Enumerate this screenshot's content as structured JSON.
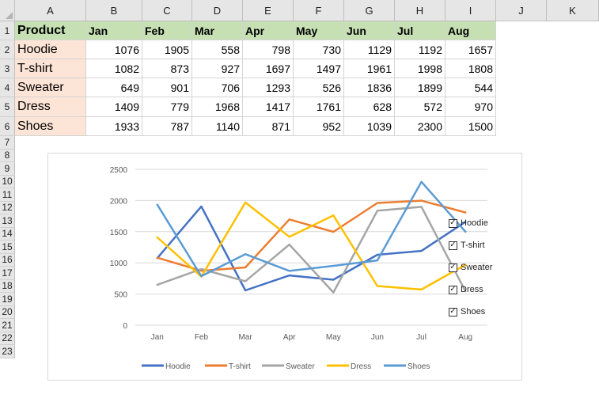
{
  "columns": [
    "A",
    "B",
    "C",
    "D",
    "E",
    "F",
    "G",
    "H",
    "I",
    "J",
    "K"
  ],
  "rows": [
    "1",
    "2",
    "3",
    "4",
    "5",
    "6",
    "7",
    "8",
    "9",
    "10",
    "11",
    "12",
    "13",
    "14",
    "15",
    "16",
    "17",
    "18",
    "19",
    "20",
    "21",
    "22",
    "23"
  ],
  "table": {
    "header": [
      "Product",
      "Jan",
      "Feb",
      "Mar",
      "Apr",
      "May",
      "Jun",
      "Jul",
      "Aug"
    ],
    "data": [
      [
        "Hoodie",
        "1076",
        "1905",
        "558",
        "798",
        "730",
        "1129",
        "1192",
        "1657"
      ],
      [
        "T-shirt",
        "1082",
        "873",
        "927",
        "1697",
        "1497",
        "1961",
        "1998",
        "1808"
      ],
      [
        "Sweater",
        "649",
        "901",
        "706",
        "1293",
        "526",
        "1836",
        "1899",
        "544"
      ],
      [
        "Dress",
        "1409",
        "779",
        "1968",
        "1417",
        "1761",
        "628",
        "572",
        "970"
      ],
      [
        "Shoes",
        "1933",
        "787",
        "1140",
        "871",
        "952",
        "1039",
        "2300",
        "1500"
      ]
    ]
  },
  "chart_data": {
    "type": "line",
    "categories": [
      "Jan",
      "Feb",
      "Mar",
      "Apr",
      "May",
      "Jun",
      "Jul",
      "Aug"
    ],
    "ylim": [
      0,
      2500
    ],
    "yticks": [
      "0",
      "500",
      "1000",
      "1500",
      "2000",
      "2500"
    ],
    "grid": true,
    "legend": "bottom",
    "series": [
      {
        "name": "Hoodie",
        "color": "#4472c4",
        "values": [
          1076,
          1905,
          558,
          798,
          730,
          1129,
          1192,
          1657
        ]
      },
      {
        "name": "T-shirt",
        "color": "#ed7d31",
        "values": [
          1082,
          873,
          927,
          1697,
          1497,
          1961,
          1998,
          1808
        ]
      },
      {
        "name": "Sweater",
        "color": "#a5a5a5",
        "values": [
          649,
          901,
          706,
          1293,
          526,
          1836,
          1899,
          544
        ]
      },
      {
        "name": "Dress",
        "color": "#ffc000",
        "values": [
          1409,
          779,
          1968,
          1417,
          1761,
          628,
          572,
          970
        ]
      },
      {
        "name": "Shoes",
        "color": "#5b9bd5",
        "values": [
          1933,
          787,
          1140,
          871,
          952,
          1039,
          2300,
          1500
        ]
      }
    ]
  },
  "checkboxes": [
    {
      "label": "Hoodie",
      "checked": "✓"
    },
    {
      "label": "T-shirt",
      "checked": "✓"
    },
    {
      "label": "Sweater",
      "checked": "✓"
    },
    {
      "label": "Dress",
      "checked": "✓"
    },
    {
      "label": "Shoes",
      "checked": "✓"
    }
  ]
}
